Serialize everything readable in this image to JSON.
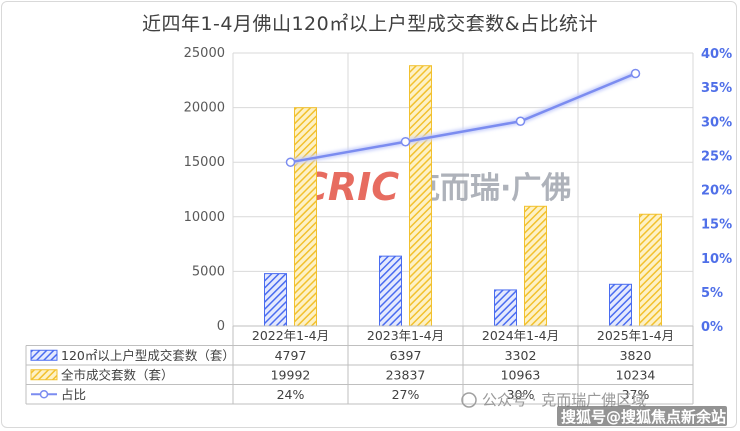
{
  "title": "近四年1-4月佛山120㎡以上户型成交套数&占比统计",
  "chart_data": {
    "type": "bar",
    "categories": [
      "2022年1-4月",
      "2023年1-4月",
      "2024年1-4月",
      "2025年1-4月"
    ],
    "series": [
      {
        "name": "120㎡以上户型成交套数（套）",
        "kind": "bar",
        "color": "#4a6cf0",
        "pattern": "hatched",
        "values": [
          4797,
          6397,
          3302,
          3820
        ]
      },
      {
        "name": "全市成交套数（套）",
        "kind": "bar",
        "color": "#f2c12e",
        "pattern": "hatched",
        "values": [
          19992,
          23837,
          10963,
          10234
        ]
      },
      {
        "name": "占比",
        "kind": "line",
        "axis": "right",
        "color": "#7b8cf0",
        "values": [
          24,
          27,
          30,
          37
        ],
        "labels": [
          "24%",
          "27%",
          "30%",
          "37%"
        ]
      }
    ],
    "y_left": {
      "min": 0,
      "max": 25000,
      "ticks": [
        "0",
        "5000",
        "10000",
        "15000",
        "20000",
        "25000"
      ]
    },
    "y_right": {
      "min": 0,
      "max": 40,
      "ticks": [
        "0%",
        "5%",
        "10%",
        "15%",
        "20%",
        "25%",
        "30%",
        "35%",
        "40%"
      ]
    },
    "table": {
      "rows": [
        [
          "4797",
          "6397",
          "3302",
          "3820"
        ],
        [
          "19992",
          "23837",
          "10963",
          "10234"
        ],
        [
          "24%",
          "27%",
          "30%",
          "37%"
        ]
      ]
    },
    "grid": true
  },
  "watermarks": {
    "center_logo": "CRIC",
    "center_text": "克而瑞·广佛",
    "bottom_line1": "公众号 · 克而瑞广佛区域",
    "bottom_line2": "搜狐号@搜狐焦点新余站"
  }
}
